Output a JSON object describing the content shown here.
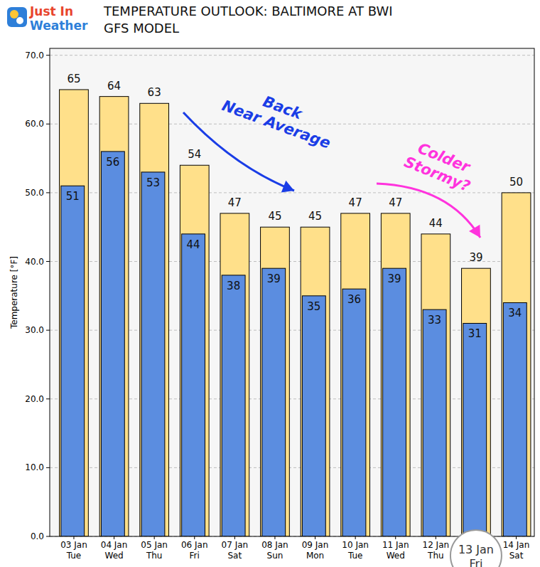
{
  "chart_data": {
    "type": "bar",
    "brand": "Just In\nWeather",
    "title": "TEMPERATURE OUTLOOK: BALTIMORE AT BWI",
    "subtitle": "GFS MODEL",
    "y_label": "Temperature [°F]",
    "categories": [
      "03 Jan\nTue",
      "04 Jan\nWed",
      "05 Jan\nThu",
      "06 Jan\nFri",
      "07 Jan\nSat",
      "08 Jan\nSun",
      "09 Jan\nMon",
      "10 Jan\nTue",
      "11 Jan\nWed",
      "12 Jan\nThu",
      "13 Jan\nFri",
      "14 Jan\nSat"
    ],
    "series": [
      {
        "color": "#ffe08a",
        "values": [
          65,
          64,
          63,
          54,
          47,
          45,
          45,
          47,
          47,
          44,
          39,
          50
        ]
      },
      {
        "color": "#5b8de0",
        "values": [
          51,
          56,
          53,
          44,
          38,
          39,
          35,
          36,
          39,
          33,
          31,
          34
        ]
      }
    ],
    "ylim": [
      0,
      71
    ],
    "yticks": [
      {
        "value": 0,
        "label": "0.0"
      },
      {
        "value": 10,
        "label": "10.0"
      },
      {
        "value": 20,
        "label": "20.0"
      },
      {
        "value": 30,
        "label": "30.0"
      },
      {
        "value": 40,
        "label": "40.0"
      },
      {
        "value": 50,
        "label": "50.0"
      },
      {
        "value": 60,
        "label": "60.0"
      },
      {
        "value": 70,
        "label": "70.0"
      }
    ],
    "grid": true,
    "data_labels": true,
    "annotations": [
      {
        "text": "Back\nNear Average",
        "color": "#1a3de6"
      },
      {
        "text": "Colder\nStormy?",
        "color": "#ff33dd"
      }
    ]
  }
}
